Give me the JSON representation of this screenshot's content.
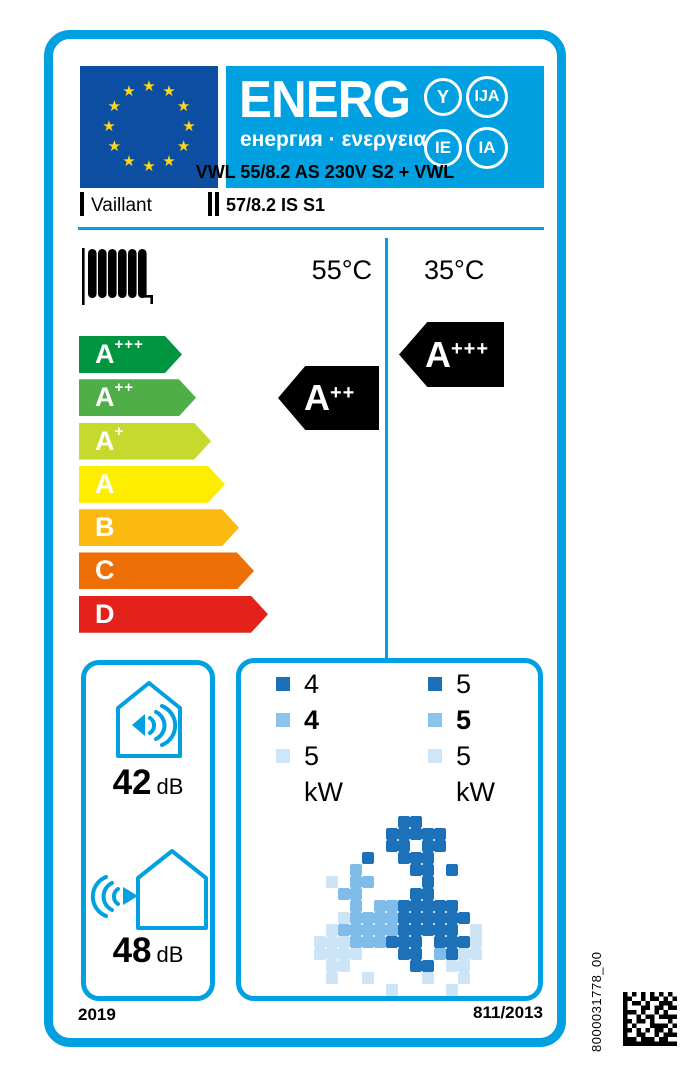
{
  "colors": {
    "cyan": "#00A0E1",
    "flag_blue": "#0B4EA2",
    "star_yellow": "#FFD617",
    "black": "#000000",
    "kw_squares": [
      "#1D6FB8",
      "#8BC4EA",
      "#CFE6F8"
    ],
    "map": {
      "D": "#1D71B8",
      "M": "#7FBCE9",
      "L": "#CBE4F6"
    }
  },
  "header": {
    "logo_word": "ENERG",
    "logo_subtitle": "енергия · ενεργεια",
    "circles": [
      "Y",
      "IJA",
      "IE",
      "IA"
    ]
  },
  "supplier": {
    "name": "Vaillant",
    "model_line1": "VWL 55/8.2 AS 230V S2 + VWL",
    "model_line2": "57/8.2 IS S1"
  },
  "columns": {
    "left_temp": "55°C",
    "right_temp": "35°C"
  },
  "rating_scale": {
    "classes": [
      {
        "label": "A",
        "sup": "+++",
        "color": "#009641"
      },
      {
        "label": "A",
        "sup": "++",
        "color": "#4FAE47"
      },
      {
        "label": "A",
        "sup": "+",
        "color": "#C5D92E"
      },
      {
        "label": "A",
        "sup": "",
        "color": "#FFED00"
      },
      {
        "label": "B",
        "sup": "",
        "color": "#FBBA12"
      },
      {
        "label": "C",
        "sup": "",
        "color": "#ED6F05"
      },
      {
        "label": "D",
        "sup": "",
        "color": "#E3231B"
      }
    ]
  },
  "ratings": {
    "left": {
      "label": "A",
      "sup": "++"
    },
    "right": {
      "label": "A",
      "sup": "+++"
    }
  },
  "sound": {
    "indoor_value": "42",
    "outdoor_value": "48",
    "unit": "dB"
  },
  "power": {
    "left": {
      "values": [
        "4",
        "4",
        "5"
      ],
      "unit": "kW"
    },
    "right": {
      "values": [
        "5",
        "5",
        "5"
      ],
      "unit": "kW"
    }
  },
  "footer": {
    "year": "2019",
    "regulation": "811/2013"
  },
  "side_code": "8000031778_00",
  "map_pixels": [
    ".......DD.........",
    "......DDDDD.......",
    "......DD.DD.......",
    "....D..DDD........",
    "...M....DD.D......",
    ".L.MM....D........",
    "..MM....DD........",
    "...M.MMDDDDD......",
    "..LMMMMDDDDDD.....",
    ".LMMMMMDDDDD.L....",
    "LLLMMMDDD.DDDL....",
    "LLLL...DD.MDLL....",
    ".LL.....DD.LL.....",
    ".L..L....L..L.....",
    "......L....L......"
  ],
  "barcode_pattern": [
    "101010101010",
    "110010110101",
    "101101001110",
    "100011011011",
    "111010010100",
    "100101101111",
    "110110100010",
    "101000111101",
    "110101011010",
    "100110010111",
    "111011101100",
    "111111111111"
  ]
}
